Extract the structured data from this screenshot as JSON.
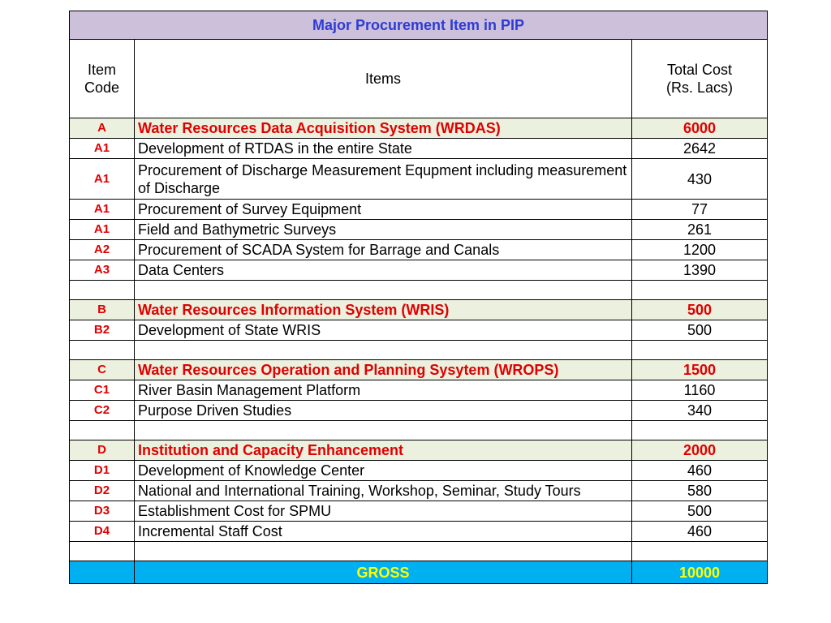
{
  "title": "Major Procurement Item in PIP",
  "header": {
    "code": "Item\nCode",
    "items": "Items",
    "cost": "Total Cost\n(Rs. Lacs)"
  },
  "sections": [
    {
      "code": "A",
      "name": "Water Resources Data Acquisition System (WRDAS)",
      "total": "6000",
      "items": [
        {
          "code": "A1",
          "name": "Development of RTDAS in the entire State",
          "cost": "2642"
        },
        {
          "code": "A1",
          "name": "Procurement of Discharge Measurement Equpment including measurement of Discharge",
          "cost": "430"
        },
        {
          "code": "A1",
          "name": "Procurement of Survey Equipment",
          "cost": "77"
        },
        {
          "code": "A1",
          "name": "Field and Bathymetric Surveys",
          "cost": "261"
        },
        {
          "code": "A2",
          "name": "Procurement of SCADA System for Barrage and Canals",
          "cost": "1200"
        },
        {
          "code": "A3",
          "name": "Data Centers",
          "cost": "1390"
        }
      ]
    },
    {
      "code": "B",
      "name": "Water Resources Information System (WRIS)",
      "total": "500",
      "items": [
        {
          "code": "B2",
          "name": "Development of State WRIS",
          "cost": "500"
        }
      ]
    },
    {
      "code": "C",
      "name": "Water Resources Operation and Planning Sysytem (WROPS)",
      "total": "1500",
      "items": [
        {
          "code": "C1",
          "name": "River Basin Management Platform",
          "cost": "1160"
        },
        {
          "code": "C2",
          "name": "Purpose Driven Studies",
          "cost": "340"
        }
      ]
    },
    {
      "code": "D",
      "name": "Institution and Capacity Enhancement",
      "total": "2000",
      "items": [
        {
          "code": "D1",
          "name": "Development of Knowledge Center",
          "cost": "460"
        },
        {
          "code": "D2",
          "name": "National and International Training, Workshop, Seminar, Study Tours",
          "cost": "580"
        },
        {
          "code": "D3",
          "name": "Establishment Cost for SPMU",
          "cost": "500"
        },
        {
          "code": "D4",
          "name": "Incremental Staff Cost",
          "cost": "460"
        }
      ]
    }
  ],
  "gross": {
    "label": "GROSS",
    "value": "10000"
  }
}
